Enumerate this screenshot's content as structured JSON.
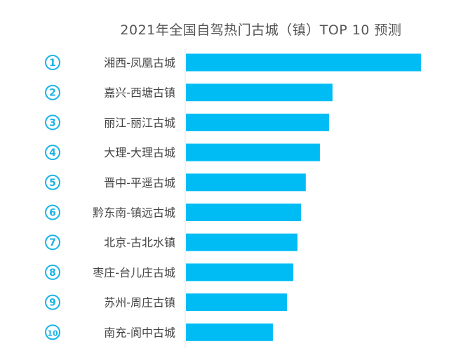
{
  "chart_data": {
    "type": "bar",
    "orientation": "horizontal",
    "title": "2021年全国自驾热门古城（镇）TOP 10 预测",
    "ranks": [
      "①",
      "②",
      "③",
      "④",
      "⑤",
      "⑥",
      "⑦",
      "⑧",
      "⑨",
      "⑩"
    ],
    "categories": [
      "湘西-凤凰古城",
      "嘉兴-西塘古镇",
      "丽江-丽江古城",
      "大理-大理古城",
      "晋中-平遥古城",
      "黔东南-镇远古城",
      "北京-古北水镇",
      "枣庄-台儿庄古城",
      "苏州-周庄古镇",
      "南充-阆中古城"
    ],
    "values": [
      100,
      62.4,
      60.9,
      57.0,
      51.0,
      49.0,
      47.5,
      45.7,
      43.0,
      37.0
    ],
    "value_note": "relative index, no axis values printed",
    "xlim": [
      0,
      100
    ],
    "grid": false,
    "legend": "none",
    "colors": {
      "bar": "#00bcf5",
      "rank_icon": "#1ab3e6",
      "label": "#444444",
      "title": "#555555"
    }
  }
}
